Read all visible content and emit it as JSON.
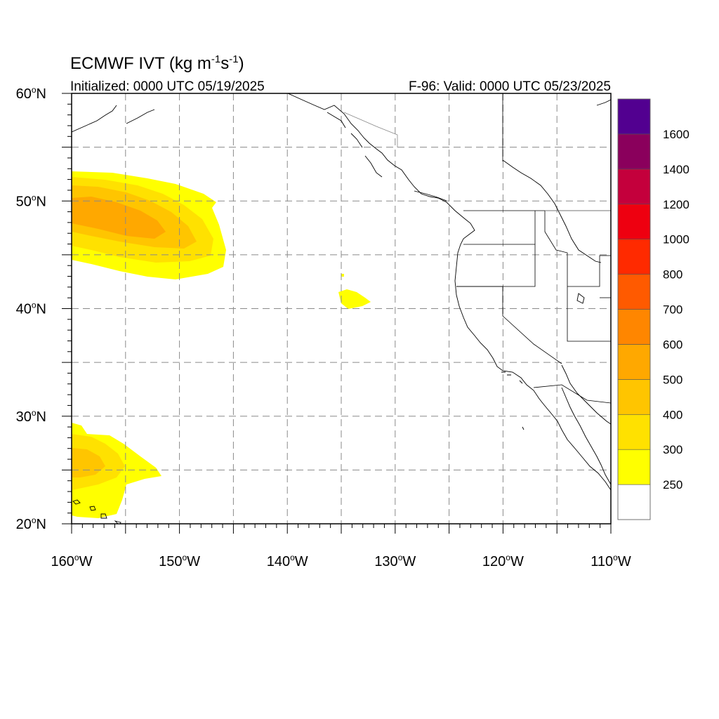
{
  "header": {
    "title_main": "ECMWF IVT (kg m",
    "title_sup1": "-1",
    "title_mid": "s",
    "title_sup2": "-1",
    "title_end": ")",
    "init_label": "Initialized: 0000 UTC 05/19/2025",
    "valid_label": "F-96: Valid: 0000 UTC 05/23/2025"
  },
  "map": {
    "lon_range": [
      -160,
      -110
    ],
    "lat_range": [
      20,
      60
    ],
    "lat_labels": [
      {
        "value": 60,
        "deg": "60",
        "hemi": "N"
      },
      {
        "value": 50,
        "deg": "50",
        "hemi": "N"
      },
      {
        "value": 40,
        "deg": "40",
        "hemi": "N"
      },
      {
        "value": 30,
        "deg": "30",
        "hemi": "N"
      },
      {
        "value": 20,
        "deg": "20",
        "hemi": "N"
      }
    ],
    "lon_labels": [
      {
        "value": -160,
        "deg": "160",
        "hemi": "W"
      },
      {
        "value": -150,
        "deg": "150",
        "hemi": "W"
      },
      {
        "value": -140,
        "deg": "140",
        "hemi": "W"
      },
      {
        "value": -130,
        "deg": "130",
        "hemi": "W"
      },
      {
        "value": -120,
        "deg": "120",
        "hemi": "W"
      },
      {
        "value": -110,
        "deg": "110",
        "hemi": "W"
      }
    ],
    "grid_dashed": true
  },
  "colorbar": {
    "labels": [
      "250",
      "300",
      "400",
      "500",
      "600",
      "700",
      "800",
      "1000",
      "1200",
      "1400",
      "1600"
    ],
    "colors": [
      "#ffffff",
      "#ffff00",
      "#ffe100",
      "#ffc500",
      "#ffa800",
      "#ff8600",
      "#ff5a00",
      "#ff2a00",
      "#ee0010",
      "#c4003c",
      "#8a005c",
      "#520090"
    ]
  }
}
